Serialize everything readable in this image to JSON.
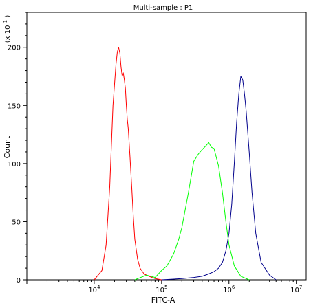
{
  "chart_data": {
    "type": "line",
    "title": "Multi-sample : P1",
    "xlabel": "FITC-A",
    "ylabel": "Count",
    "y_multiplier_label": "(x 10",
    "y_multiplier_exp": "1",
    "y_multiplier_close": ")",
    "xscale": "log",
    "xlim": [
      1000,
      14000000
    ],
    "ylim": [
      0,
      230
    ],
    "x_ticks": [
      {
        "base": "10",
        "exp": "4",
        "value": 10000
      },
      {
        "base": "10",
        "exp": "5",
        "value": 100000
      },
      {
        "base": "10",
        "exp": "6",
        "value": 1000000
      },
      {
        "base": "10",
        "exp": "7",
        "value": 10000000
      }
    ],
    "y_ticks": [
      {
        "label": "0",
        "value": 0
      },
      {
        "label": "50",
        "value": 50
      },
      {
        "label": "100",
        "value": 100
      },
      {
        "label": "150",
        "value": 150
      },
      {
        "label": "200",
        "value": 200
      }
    ],
    "grid": false,
    "legend": "none",
    "series": [
      {
        "color": "#ff0000",
        "x": [
          10000,
          13000,
          15000,
          17000,
          19000,
          21000,
          22000,
          23000,
          24000,
          25000,
          26000,
          27000,
          28000,
          29000,
          30000,
          31000,
          32000,
          34000,
          36000,
          38000,
          40000,
          44000,
          48000,
          55000,
          65000,
          80000,
          100000
        ],
        "y": [
          0,
          8,
          30,
          80,
          150,
          185,
          196,
          200,
          195,
          183,
          175,
          178,
          172,
          165,
          150,
          138,
          130,
          105,
          80,
          55,
          35,
          18,
          10,
          5,
          3,
          1,
          0
        ]
      },
      {
        "color": "#00ff00",
        "x": [
          40000,
          60000,
          80000,
          100000,
          120000,
          150000,
          180000,
          200000,
          250000,
          300000,
          350000,
          400000,
          450000,
          500000,
          550000,
          600000,
          700000,
          800000,
          900000,
          1000000,
          1200000,
          1500000,
          2000000
        ],
        "y": [
          0,
          4,
          2,
          8,
          12,
          22,
          35,
          45,
          75,
          102,
          108,
          112,
          115,
          118,
          114,
          113,
          98,
          75,
          50,
          30,
          12,
          3,
          0
        ]
      },
      {
        "color": "#00008b",
        "x": [
          100000,
          200000,
          300000,
          400000,
          500000,
          600000,
          700000,
          800000,
          900000,
          1000000,
          1100000,
          1200000,
          1300000,
          1400000,
          1500000,
          1600000,
          1700000,
          1800000,
          2000000,
          2200000,
          2500000,
          3000000,
          4000000,
          5000000
        ],
        "y": [
          0,
          1,
          2,
          3,
          5,
          7,
          10,
          15,
          25,
          40,
          65,
          100,
          135,
          160,
          175,
          172,
          160,
          145,
          110,
          75,
          40,
          15,
          4,
          0
        ]
      }
    ]
  }
}
